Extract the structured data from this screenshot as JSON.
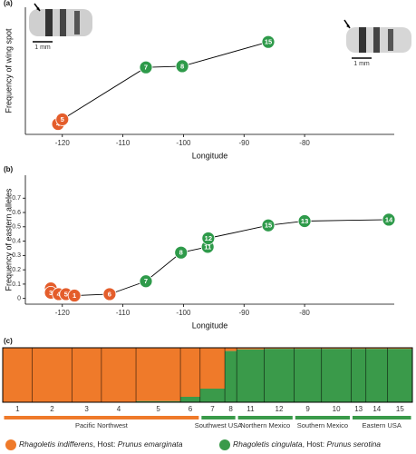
{
  "chart_data": [
    {
      "type": "line",
      "panel_label": "(a)",
      "x_label": "Longitude",
      "y_label": "Frequency of wing spot",
      "xlim": [
        -126.1,
        -65.2
      ],
      "ylim": [
        0,
        1.1
      ],
      "xticks": [
        -120,
        -110,
        -100,
        -90,
        -80
      ],
      "x": [
        -120.7,
        -120.0,
        -106.2,
        -100.2,
        -86.0
      ],
      "values": [
        0.09,
        0.13,
        0.58,
        0.59,
        0.8
      ],
      "point_labels": [
        "4",
        "5",
        "7",
        "8",
        "15"
      ],
      "point_colors": [
        "#e45d2b",
        "#e45d2b",
        "#2e9a4a",
        "#2e9a4a",
        "#2e9a4a"
      ],
      "scale_labels": [
        "1 mm",
        "1 mm"
      ]
    },
    {
      "type": "line",
      "panel_label": "(b)",
      "x_label": "Longitude",
      "y_label": "Frequency of eastern alleles",
      "xlim": [
        -126.1,
        -65.2
      ],
      "ylim": [
        -0.04,
        0.86
      ],
      "xticks": [
        -120,
        -110,
        -100,
        -90,
        -80
      ],
      "yticks": [
        0,
        0.1,
        0.2,
        0.3,
        0.4,
        0.5,
        0.6,
        0.7
      ],
      "x": [
        -121.9,
        -121.9,
        -120.6,
        -119.4,
        -118.0,
        -112.2,
        -106.2,
        -100.4,
        -96.0,
        -95.9,
        -86.0,
        -80.0,
        -66.1
      ],
      "values": [
        0.07,
        0.04,
        0.03,
        0.03,
        0.02,
        0.03,
        0.12,
        0.32,
        0.36,
        0.42,
        0.51,
        0.54,
        0.55
      ],
      "point_labels": [
        "2",
        "3",
        "4",
        "5",
        "1",
        "6",
        "7",
        "8",
        "11",
        "12",
        "15",
        "13",
        "14"
      ],
      "point_colors": [
        "#e45d2b",
        "#e45d2b",
        "#e45d2b",
        "#e45d2b",
        "#e45d2b",
        "#e45d2b",
        "#2e9a4a",
        "#2e9a4a",
        "#2e9a4a",
        "#2e9a4a",
        "#2e9a4a",
        "#2e9a4a",
        "#2e9a4a"
      ]
    },
    {
      "type": "structure",
      "panel_label": "(c)",
      "categories": [
        "1",
        "2",
        "3",
        "4",
        "5",
        "6",
        "7",
        "8",
        "11",
        "12",
        "9",
        "10",
        "13",
        "14",
        "15"
      ],
      "sizes": [
        30,
        40,
        30,
        35,
        45,
        20,
        25,
        12,
        28,
        30,
        28,
        30,
        15,
        22,
        25
      ],
      "series": [
        {
          "name": "Rhagoletis indifferens",
          "host_prefix": ", Host: ",
          "host": "Prunus emarginata",
          "color": "#ef7a2a",
          "values": [
            1,
            1,
            1,
            1,
            0.98,
            0.9,
            0.75,
            0.06,
            0.03,
            0.02,
            0.02,
            0.02,
            0.02,
            0.02,
            0.02
          ]
        },
        {
          "name": "Rhagoletis cingulata",
          "host_prefix": ", Host: ",
          "host": "Prunus serotina",
          "color": "#3a9a4a",
          "values": [
            0,
            0,
            0,
            0,
            0.02,
            0.1,
            0.25,
            0.94,
            0.97,
            0.98,
            0.98,
            0.98,
            0.98,
            0.98,
            0.98
          ]
        }
      ],
      "groups": [
        {
          "label": "Pacific Northwest",
          "color": "#ef7a2a",
          "members": [
            "1",
            "2",
            "3",
            "4",
            "5",
            "6"
          ]
        },
        {
          "label": "Southwest USA",
          "color": "#3a9a4a",
          "members": [
            "7",
            "8"
          ]
        },
        {
          "label": "Northern Mexico",
          "color": "#3a9a4a",
          "members": [
            "11",
            "12"
          ]
        },
        {
          "label": "Southern Mexico",
          "color": "#3a9a4a",
          "members": [
            "9",
            "10"
          ]
        },
        {
          "label": "Eastern USA",
          "color": "#3a9a4a",
          "members": [
            "13",
            "14",
            "15"
          ]
        }
      ]
    }
  ]
}
